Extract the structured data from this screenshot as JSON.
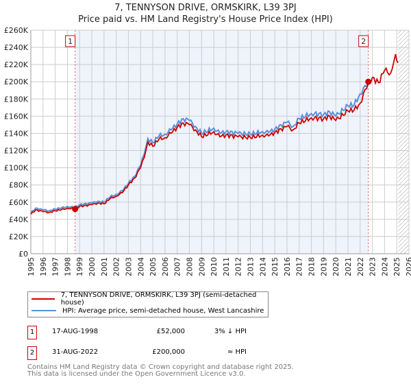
{
  "chart_data": {
    "type": "line",
    "title": "7, TENNYSON DRIVE, ORMSKIRK, L39 3PJ",
    "subtitle": "Price paid vs. HM Land Registry's House Price Index (HPI)",
    "xlim": [
      1995,
      2026
    ],
    "ylim": [
      0,
      260000
    ],
    "x_ticks": [
      "1995",
      "1996",
      "1997",
      "1998",
      "1999",
      "2000",
      "2001",
      "2002",
      "2003",
      "2004",
      "2005",
      "2006",
      "2007",
      "2008",
      "2009",
      "2010",
      "2011",
      "2012",
      "2013",
      "2014",
      "2015",
      "2016",
      "2017",
      "2018",
      "2019",
      "2020",
      "2021",
      "2022",
      "2023",
      "2024",
      "2025",
      "2026"
    ],
    "y_ticks": [
      "£0",
      "£20K",
      "£40K",
      "£60K",
      "£80K",
      "£100K",
      "£120K",
      "£140K",
      "£160K",
      "£180K",
      "£200K",
      "£220K",
      "£240K",
      "£260K"
    ],
    "grid": true,
    "series": [
      {
        "name": "7, TENNYSON DRIVE, ORMSKIRK, L39 3PJ (semi-detached house)",
        "color": "#cc0000",
        "x": [
          1995,
          1995.4,
          1996,
          1996.5,
          1997,
          1997.5,
          1998,
          1998.63,
          1999,
          2000,
          2000.5,
          2001,
          2001.5,
          2002,
          2002.5,
          2003,
          2003.5,
          2004,
          2004.3,
          2004.6,
          2005,
          2005.5,
          2006,
          2006.5,
          2007,
          2007.5,
          2008,
          2008.5,
          2009,
          2010,
          2010.5,
          2011,
          2012,
          2013,
          2014,
          2014.5,
          2015,
          2016,
          2016.5,
          2017,
          2018,
          2019,
          2019.5,
          2020,
          2021,
          2021.5,
          2022,
          2022.67,
          2023,
          2023.5,
          2024,
          2024.5,
          2024.9,
          2025.1
        ],
        "y": [
          46000,
          51000,
          49000,
          48000,
          50000,
          51000,
          53000,
          52000,
          55000,
          57000,
          59000,
          58000,
          64000,
          67000,
          71000,
          80000,
          88000,
          100000,
          112000,
          130000,
          125000,
          133000,
          135000,
          140000,
          147000,
          152000,
          150000,
          144000,
          136000,
          142000,
          136000,
          138000,
          136000,
          135000,
          138000,
          137000,
          141000,
          148000,
          144000,
          152000,
          158000,
          157000,
          160000,
          155000,
          166000,
          167000,
          175000,
          200000,
          205000,
          199000,
          213000,
          210000,
          232000,
          222000
        ]
      },
      {
        "name": "HPI: Average price, semi-detached house, West Lancashire",
        "color": "#5b8fd6",
        "x": [
          1995,
          1995.4,
          1996,
          1996.5,
          1997,
          1997.5,
          1998,
          1998.63,
          1999,
          2000,
          2000.5,
          2001,
          2001.5,
          2002,
          2002.5,
          2003,
          2003.5,
          2004,
          2004.3,
          2004.6,
          2005,
          2005.5,
          2006,
          2006.5,
          2007,
          2007.5,
          2008,
          2008.5,
          2009,
          2010,
          2010.5,
          2011,
          2012,
          2013,
          2014,
          2014.5,
          2015,
          2016,
          2016.5,
          2017,
          2018,
          2019,
          2019.5,
          2020,
          2021,
          2021.5,
          2022,
          2022.67
        ],
        "y": [
          47500,
          53000,
          51000,
          50000,
          52000,
          53000,
          55000,
          53500,
          57000,
          59000,
          61000,
          60000,
          66000,
          69000,
          73000,
          82000,
          90000,
          103000,
          116000,
          134000,
          129000,
          137000,
          139000,
          144000,
          151000,
          157000,
          155000,
          148000,
          140000,
          146000,
          140000,
          142000,
          140000,
          139000,
          142000,
          141000,
          145000,
          153000,
          148000,
          157000,
          163000,
          162000,
          165000,
          160000,
          172000,
          173000,
          186000,
          200000
        ]
      }
    ],
    "sales": [
      {
        "label": "1",
        "x": 1998.63,
        "y": 52000
      },
      {
        "label": "2",
        "x": 2022.67,
        "y": 200000
      }
    ],
    "shaded_range": [
      1998.63,
      2022.67
    ],
    "hatched_from": 2025.1,
    "legend_position": "below"
  },
  "table": [
    {
      "num": "1",
      "date": "17-AUG-1998",
      "price": "£52,000",
      "hpi": "3% ↓ HPI"
    },
    {
      "num": "2",
      "date": "31-AUG-2022",
      "price": "£200,000",
      "hpi": "≈ HPI"
    }
  ],
  "footer": {
    "line1": "Contains HM Land Registry data © Crown copyright and database right 2025.",
    "line2": "This data is licensed under the Open Government Licence v3.0."
  }
}
